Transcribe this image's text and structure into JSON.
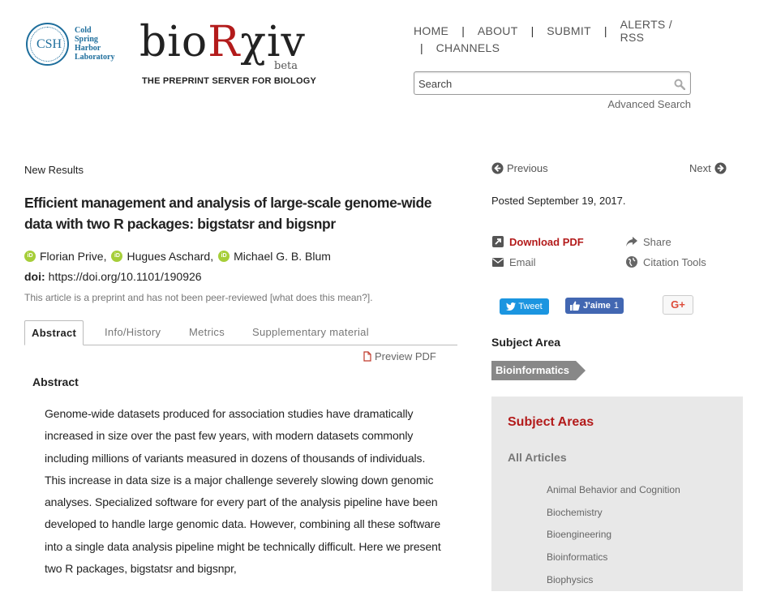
{
  "header": {
    "csh_logo": {
      "abbr": "CSH",
      "lines": [
        "Cold",
        "Spring",
        "Harbor",
        "Laboratory"
      ]
    },
    "brand": {
      "name_prefix": "bio",
      "name_r": "R",
      "name_suffix": "χiv",
      "beta": "beta",
      "tagline": "THE PREPRINT SERVER FOR BIOLOGY"
    },
    "nav": [
      "HOME",
      "ABOUT",
      "SUBMIT",
      "ALERTS / RSS",
      "CHANNELS"
    ],
    "search": {
      "placeholder": "Search",
      "value": ""
    },
    "advanced_search": "Advanced Search"
  },
  "article": {
    "category": "New Results",
    "title": "Efficient management and analysis of large-scale genome-wide data with two R packages: bigstatsr and bigsnpr",
    "authors": [
      "Florian Prive,",
      "Hugues Aschard,",
      "Michael G. B. Blum"
    ],
    "doi_label": "doi:",
    "doi_value": "https://doi.org/10.1101/190926",
    "preprint_note": "This article is a preprint and has not been peer-reviewed [what does this mean?].",
    "tabs": [
      "Abstract",
      "Info/History",
      "Metrics",
      "Supplementary material"
    ],
    "active_tab": "Abstract",
    "preview_pdf": "Preview PDF",
    "abstract_heading": "Abstract",
    "abstract_text": "Genome-wide datasets produced for association studies have dramatically increased in size over the past few years, with modern datasets commonly including millions of variants measured in dozens of thousands of individuals. This increase in data size is a major challenge severely slowing down genomic analyses. Specialized software for every part of the analysis pipeline have been developed to handle large genomic data. However, combining all these software into a single data analysis pipeline might be technically difficult. Here we present two R packages, bigstatsr and bigsnpr,"
  },
  "sidebar": {
    "previous": "Previous",
    "next": "Next",
    "posted": "Posted September 19, 2017.",
    "download_pdf": "Download PDF",
    "share": "Share",
    "email": "Email",
    "citation_tools": "Citation Tools",
    "tweet": "Tweet",
    "fb_like": "J'aime",
    "fb_count": "1",
    "gplus": "G+",
    "subject_area_title": "Subject Area",
    "subject_tag": "Bioinformatics",
    "subject_areas": {
      "title": "Subject Areas",
      "all_articles": "All Articles",
      "items": [
        "Animal Behavior and Cognition",
        "Biochemistry",
        "Bioengineering",
        "Bioinformatics",
        "Biophysics"
      ]
    }
  },
  "colors": {
    "accent": "#b31b1b",
    "csh_blue": "#1e6e9c",
    "tag_gray": "#888888",
    "panel_bg": "#e8e8e8"
  },
  "icons": {
    "previous": "circle-arrow-left-icon",
    "next": "circle-arrow-right-icon",
    "download": "external-link-icon",
    "share": "share-arrow-icon",
    "email": "envelope-icon",
    "citation": "globe-icon",
    "search": "magnifier-icon",
    "pdf": "file-icon",
    "orcid": "orcid-icon"
  }
}
